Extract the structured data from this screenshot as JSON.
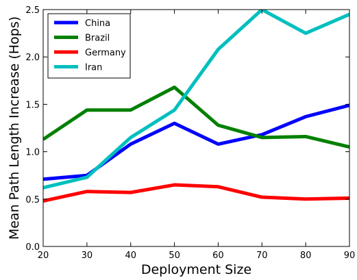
{
  "chart_data": {
    "type": "line",
    "title": "",
    "xlabel": "Deployment Size",
    "ylabel": "Mean Path Length Increase (Hops)",
    "x": [
      20,
      30,
      40,
      50,
      60,
      70,
      80,
      90
    ],
    "xlim": [
      20,
      90
    ],
    "ylim": [
      0.0,
      2.5
    ],
    "xticks": [
      "20",
      "30",
      "40",
      "50",
      "60",
      "70",
      "80",
      "90"
    ],
    "yticks": [
      "0.0",
      "0.5",
      "1.0",
      "1.5",
      "2.0",
      "2.5"
    ],
    "grid": false,
    "legend_position": "top-left",
    "series": [
      {
        "name": "China",
        "color": "#0000ff",
        "values": [
          0.71,
          0.75,
          1.08,
          1.3,
          1.08,
          1.18,
          1.37,
          1.49
        ]
      },
      {
        "name": "Brazil",
        "color": "#008000",
        "values": [
          1.13,
          1.44,
          1.44,
          1.68,
          1.28,
          1.15,
          1.16,
          1.05
        ]
      },
      {
        "name": "Germany",
        "color": "#ff0000",
        "values": [
          0.48,
          0.58,
          0.57,
          0.65,
          0.63,
          0.52,
          0.5,
          0.51
        ]
      },
      {
        "name": "Iran",
        "color": "#00bfbf",
        "values": [
          0.62,
          0.73,
          1.15,
          1.44,
          2.08,
          2.5,
          2.25,
          2.45
        ]
      }
    ]
  }
}
